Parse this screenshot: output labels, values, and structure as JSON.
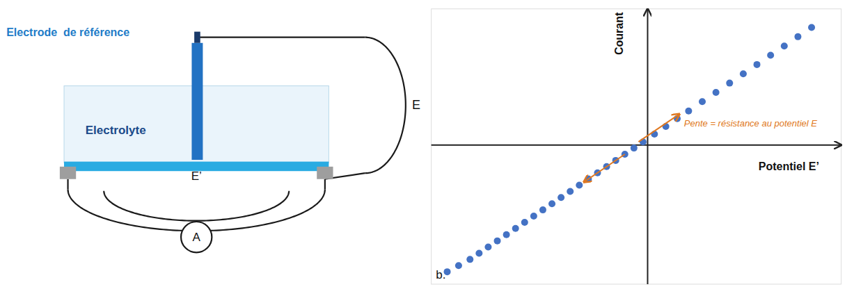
{
  "chart_data": {
    "type": "scatter",
    "x": [
      -0.88,
      -0.83,
      -0.78,
      -0.74,
      -0.7,
      -0.66,
      -0.62,
      -0.58,
      -0.54,
      -0.5,
      -0.46,
      -0.42,
      -0.38,
      -0.34,
      -0.3,
      -0.26,
      -0.22,
      -0.18,
      -0.14,
      -0.1,
      -0.06,
      -0.02,
      0.03,
      0.08,
      0.13,
      0.18,
      0.24,
      0.3,
      0.36,
      0.42,
      0.48,
      0.54,
      0.6,
      0.66,
      0.72
    ],
    "values": [
      -0.82,
      -0.78,
      -0.74,
      -0.7,
      -0.66,
      -0.62,
      -0.58,
      -0.54,
      -0.5,
      -0.46,
      -0.42,
      -0.38,
      -0.34,
      -0.3,
      -0.26,
      -0.22,
      -0.18,
      -0.14,
      -0.1,
      -0.06,
      -0.02,
      0.02,
      0.07,
      0.12,
      0.17,
      0.22,
      0.28,
      0.34,
      0.4,
      0.46,
      0.52,
      0.58,
      0.64,
      0.7,
      0.76
    ],
    "color": "#4472C4",
    "xlim": [
      -0.95,
      0.85
    ],
    "ylim": [
      -0.9,
      0.88
    ],
    "xlabel": "Potentiel E’",
    "ylabel": "Courant",
    "tick_labels": false,
    "grid": false,
    "annotations": [
      {
        "text": "Electrode  de référence",
        "color": "#1E7CC8"
      },
      {
        "text": "Electrolyte",
        "color": "#1A4A8A"
      },
      {
        "text": "E"
      },
      {
        "text": "E’"
      },
      {
        "text": "A"
      },
      {
        "text": "Pente = résistance au potentiel E",
        "color": "#E07820",
        "arrows": [
          {
            "start": [
              -0.04,
              0.02
            ],
            "end": [
              0.14,
              0.2
            ]
          },
          {
            "start": [
              -0.1,
              -0.06
            ],
            "end": [
              -0.28,
              -0.24
            ]
          }
        ]
      },
      {
        "text": "b."
      }
    ]
  }
}
